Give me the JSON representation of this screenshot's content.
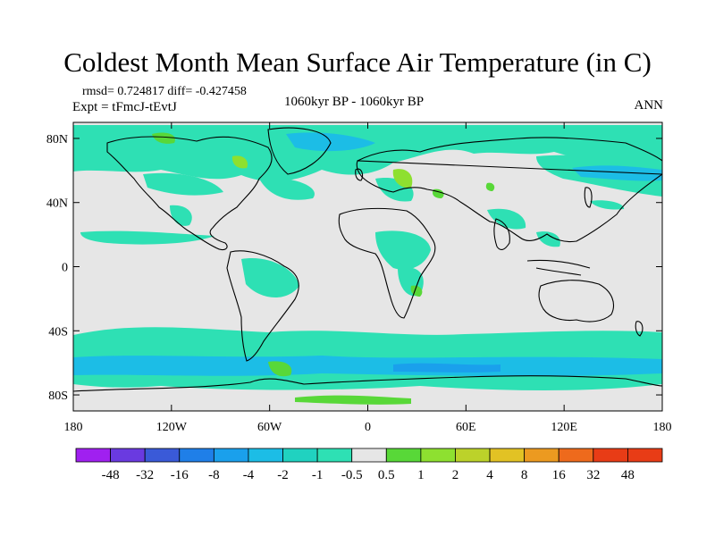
{
  "title": "Coldest Month Mean Surface Air Temperature (in C)",
  "stats_line": "rmsd= 0.724817  diff= -0.427458",
  "expt_line": "Expt = tFmcJ-tEvtJ",
  "period_line": "1060kyr BP - 1060kyr BP",
  "season": "ANN",
  "map": {
    "lat_ticks": [
      "80N",
      "40N",
      "0",
      "40S",
      "80S"
    ],
    "lat_values": [
      80,
      40,
      0,
      -40,
      -80
    ],
    "lon_ticks": [
      "180",
      "120W",
      "60W",
      "0",
      "60E",
      "120E",
      "180"
    ],
    "lon_values": [
      -180,
      -120,
      -60,
      0,
      60,
      120,
      180
    ],
    "background_color": "#e6e6e6",
    "coast_color": "#000000"
  },
  "colorbar": {
    "labels": [
      "-48",
      "-32",
      "-16",
      "-8",
      "-4",
      "-2",
      "-1",
      "-0.5",
      "0.5",
      "1",
      "2",
      "4",
      "8",
      "16",
      "32",
      "48"
    ],
    "colors": [
      "#a020f0",
      "#6a3ae0",
      "#3a5ad8",
      "#1f7fe8",
      "#1aa0ec",
      "#1cbde6",
      "#20d2c0",
      "#2ee0b4",
      "#e6e6e6",
      "#58d838",
      "#8ee030",
      "#bcd22a",
      "#e2c224",
      "#ec9a20",
      "#ee6a1c",
      "#e83c16"
    ]
  }
}
